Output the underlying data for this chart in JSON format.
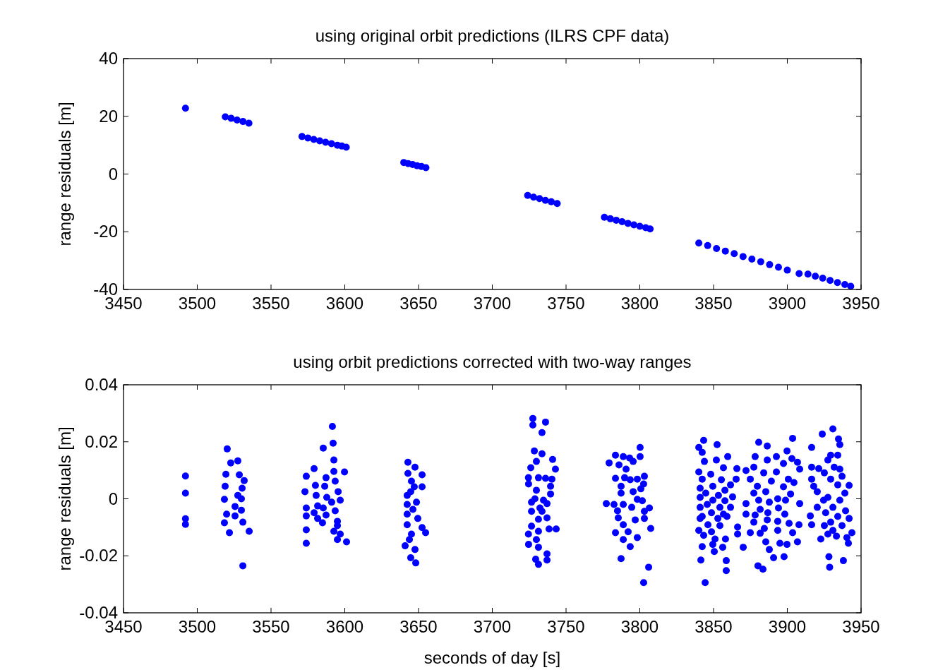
{
  "chart_data": [
    {
      "type": "scatter",
      "title": "using original orbit predictions (ILRS CPF data)",
      "ylabel": "range residuals [m]",
      "marker": "circle",
      "grid": false,
      "xlim": [
        3450,
        3950
      ],
      "xticks": [
        3450,
        3500,
        3550,
        3600,
        3650,
        3700,
        3750,
        3800,
        3850,
        3900,
        3950
      ],
      "ylim": [
        -40,
        40
      ],
      "yticks": [
        -40,
        -20,
        0,
        20,
        40
      ],
      "series": [
        {
          "color": "#0000ff",
          "x": [
            3492,
            3519,
            3523,
            3527,
            3531,
            3535,
            3571,
            3575,
            3579,
            3583,
            3587,
            3591,
            3595,
            3598,
            3601,
            3640,
            3643,
            3646,
            3649,
            3652,
            3655,
            3724,
            3728,
            3732,
            3736,
            3740,
            3744,
            3776,
            3780,
            3784,
            3788,
            3792,
            3796,
            3800,
            3804,
            3807,
            3840,
            3846,
            3852,
            3858,
            3864,
            3870,
            3876,
            3882,
            3888,
            3894,
            3900,
            3908,
            3914,
            3919,
            3924,
            3929,
            3934,
            3939,
            3943
          ],
          "values": [
            22.8,
            19.8,
            19.3,
            18.7,
            18.2,
            17.6,
            13.0,
            12.5,
            12.0,
            11.5,
            11.0,
            10.5,
            10.0,
            9.7,
            9.3,
            4.0,
            3.6,
            3.3,
            2.9,
            2.6,
            2.2,
            -7.4,
            -8.0,
            -8.5,
            -9.1,
            -9.6,
            -10.2,
            -15.0,
            -15.5,
            -16.0,
            -16.5,
            -17.1,
            -17.6,
            -18.1,
            -18.6,
            -19.0,
            -23.9,
            -24.8,
            -25.8,
            -26.7,
            -27.6,
            -28.6,
            -29.5,
            -30.4,
            -31.4,
            -32.3,
            -33.3,
            -34.5,
            -34.7,
            -35.4,
            -36.1,
            -36.9,
            -37.6,
            -38.3,
            -38.9
          ]
        }
      ]
    },
    {
      "type": "scatter",
      "title": "using orbit predictions corrected with two-way ranges",
      "xlabel": "seconds of day [s]",
      "ylabel": "range residuals [m]",
      "marker": "circle",
      "grid": false,
      "xlim": [
        3450,
        3950
      ],
      "xticks": [
        3450,
        3500,
        3550,
        3600,
        3650,
        3700,
        3750,
        3800,
        3850,
        3900,
        3950
      ],
      "ylim": [
        -0.04,
        0.04
      ],
      "yticks": [
        -0.04,
        -0.02,
        0,
        0.02,
        0.04
      ],
      "series": [
        {
          "color": "#0000ff",
          "x": [
            3492,
            3492,
            3492,
            3492,
            3520.3,
            3522.7,
            3527.5,
            3519.4,
            3528.5,
            3531.8,
            3518.9,
            3530.4,
            3518.4,
            3527.5,
            3529.9,
            3525.6,
            3529.9,
            3519.9,
            3525.6,
            3518.4,
            3530.9,
            3521.8,
            3535.2,
            3530.9,
            3591.6,
            3592.1,
            3585.4,
            3592.6,
            3579.2,
            3599.8,
            3592.6,
            3573.9,
            3587.3,
            3580.1,
            3593.5,
            3586.4,
            3573,
            3595.5,
            3580.6,
            3587.8,
            3596.9,
            3591.1,
            3581.6,
            3573.9,
            3585.4,
            3593.5,
            3579.2,
            3573.9,
            3587.3,
            3581.6,
            3584.9,
            3595,
            3595,
            3573.9,
            3592.6,
            3596.9,
            3595,
            3601.2,
            3573.9,
            3642.8,
            3647.6,
            3642.8,
            3652.4,
            3645.2,
            3647.1,
            3652.4,
            3642.3,
            3644.7,
            3648.6,
            3642.3,
            3646.2,
            3642.3,
            3649.5,
            3642.3,
            3652.4,
            3645.2,
            3654.8,
            3643.8,
            3640.9,
            3647.6,
            3644.7,
            3648.1,
            3727.5,
            3736.1,
            3727.5,
            3733.7,
            3728.5,
            3733.7,
            3729.9,
            3740.9,
            3726.1,
            3742.8,
            3724.5,
            3731.3,
            3736.1,
            3740.4,
            3724.6,
            3739.5,
            3729.9,
            3739.5,
            3728.9,
            3726.6,
            3734.7,
            3737.1,
            3732.3,
            3726.6,
            3733.7,
            3737.1,
            3731.3,
            3726.6,
            3738.5,
            3743.3,
            3731.3,
            3724.5,
            3729.9,
            3724.6,
            3731.3,
            3737.1,
            3729.4,
            3737.1,
            3731.3,
            3800.2,
            3783.5,
            3788.8,
            3793.1,
            3800.2,
            3779.2,
            3785.9,
            3795.5,
            3790.7,
            3783.5,
            3789.7,
            3798.3,
            3803.1,
            3793.5,
            3787.3,
            3802.6,
            3800.7,
            3787.3,
            3795.5,
            3777.3,
            3782.5,
            3788.8,
            3798.3,
            3801.7,
            3794.5,
            3806.5,
            3784.9,
            3803.1,
            3785.4,
            3796.9,
            3803.1,
            3788.8,
            3807.4,
            3783.5,
            3792.1,
            3798.3,
            3788.8,
            3793.5,
            3787.3,
            3806,
            3802.6,
            3843.3,
            3840,
            3852.4,
            3842.3,
            3859.6,
            3843.8,
            3851.9,
            3840,
            3856.7,
            3848.1,
            3842.3,
            3855.3,
            3861.5,
            3840.9,
            3849.5,
            3857.7,
            3844.7,
            3853.3,
            3862.9,
            3840.9,
            3849.5,
            3857.7,
            3845.7,
            3854.3,
            3840.9,
            3861.5,
            3848.6,
            3856.7,
            3842.3,
            3852.9,
            3859.1,
            3840.9,
            3846.2,
            3854.3,
            3840,
            3848.6,
            3843.3,
            3851,
            3858.1,
            3842.3,
            3849.5,
            3856.2,
            3850.5,
            3841.4,
            3858.6,
            3858.6,
            3844.3,
            3880.6,
            3886.4,
            3903.6,
            3899.8,
            3878.2,
            3892.6,
            3886.4,
            3903.1,
            3865.8,
            3872,
            3877.3,
            3897.4,
            3906.9,
            3884,
            3892.6,
            3908.4,
            3865.3,
            3874.9,
            3889.2,
            3900.7,
            3904.5,
            3879.7,
            3885.4,
            3897.4,
            3877.3,
            3902.2,
            3880.6,
            3887.8,
            3893.5,
            3898.8,
            3908.4,
            3872,
            3881.6,
            3894,
            3872,
            3878.2,
            3886.8,
            3898.3,
            3877.3,
            3886.4,
            3893.5,
            3901.2,
            3907.9,
            3866.3,
            3884.4,
            3874.9,
            3881.6,
            3893.5,
            3903.6,
            3866.3,
            3885.4,
            3906.9,
            3895,
            3899.8,
            3870.1,
            3887.8,
            3890.7,
            3897.8,
            3880.1,
            3883.5,
            3930.9,
            3923.7,
            3934.7,
            3935.6,
            3916.5,
            3929.4,
            3934.2,
            3927.5,
            3916.5,
            3921.3,
            3931.8,
            3935.6,
            3925.1,
            3937.1,
            3916.5,
            3929.4,
            3941.9,
            3917.9,
            3934.2,
            3920.3,
            3939,
            3927.5,
            3924.6,
            3935.6,
            3920.3,
            3930.9,
            3939.5,
            3926,
            3934.2,
            3915.6,
            3941.9,
            3929.4,
            3916.5,
            3925.1,
            3937.1,
            3930.9,
            3943.8,
            3927.5,
            3933.3,
            3940.4,
            3922.7,
            3941.4,
            3928.2,
            3938,
            3928.7
          ],
          "values": [
            0.008,
            0.002,
            -0.007,
            -0.009,
            0.0175,
            0.0126,
            0.0133,
            0.0086,
            0.0084,
            0.0064,
            0.0044,
            0.0037,
            -0.0002,
            0.0012,
            0,
            -0.0027,
            -0.004,
            -0.0054,
            -0.006,
            -0.0084,
            -0.0082,
            -0.0119,
            -0.0114,
            -0.0235,
            0.0254,
            0.0195,
            0.0178,
            0.0136,
            0.0106,
            0.0094,
            0.0096,
            0.0079,
            0.0074,
            0.0047,
            0.0062,
            0.0044,
            0.0025,
            0.0025,
            0.0012,
            0.0005,
            -0.0005,
            -0.0012,
            -0.0025,
            -0.0032,
            -0.0032,
            -0.0042,
            -0.0049,
            -0.006,
            -0.0057,
            -0.0069,
            -0.0084,
            -0.0079,
            -0.0094,
            -0.0109,
            -0.0114,
            -0.0124,
            -0.0143,
            -0.0151,
            -0.0156,
            0.0128,
            0.0111,
            0.0089,
            0.0084,
            0.0062,
            0.0042,
            0.0042,
            0.0012,
            0.0025,
            -0.0012,
            -0.002,
            -0.0037,
            -0.0054,
            -0.0069,
            -0.0091,
            -0.0101,
            -0.0124,
            -0.0119,
            -0.0143,
            -0.0165,
            -0.0178,
            -0.0207,
            -0.0225,
            0.0282,
            0.0269,
            0.0259,
            0.0232,
            0.0168,
            0.0158,
            0.0131,
            0.0138,
            0.0109,
            0.0104,
            0.0074,
            0.0074,
            0.0072,
            0.0069,
            0.0052,
            0.0044,
            0.003,
            0.0017,
            0,
            -0.0012,
            -0.0005,
            -0.0017,
            -0.0032,
            -0.0044,
            -0.0044,
            -0.0067,
            -0.0072,
            -0.0096,
            -0.0106,
            -0.0106,
            -0.0114,
            -0.0124,
            -0.0143,
            -0.016,
            -0.017,
            -0.0193,
            -0.0212,
            -0.0215,
            -0.023,
            0.018,
            0.0153,
            0.0148,
            0.0143,
            0.0148,
            0.0126,
            0.0119,
            0.0131,
            0.0104,
            0.0072,
            0.0074,
            0.0069,
            0.0079,
            0.0067,
            0.0044,
            0.0052,
            0.0035,
            0.002,
            0.0025,
            -0.0017,
            -0.002,
            -0.002,
            -0.0002,
            -0.0007,
            -0.003,
            -0.0032,
            -0.0042,
            -0.0044,
            -0.0067,
            -0.0074,
            -0.0069,
            -0.0091,
            -0.0104,
            -0.0119,
            -0.0116,
            -0.0136,
            -0.0143,
            -0.0168,
            -0.021,
            -0.024,
            -0.0294,
            0.0205,
            0.018,
            0.019,
            0.0163,
            0.0148,
            0.0131,
            0.0136,
            0.0094,
            0.0109,
            0.0086,
            0.0069,
            0.0067,
            0.0049,
            0.0037,
            0.0044,
            0.003,
            0.002,
            0.0012,
            0.0007,
            0.0005,
            -0.0005,
            -0.0007,
            -0.002,
            -0.003,
            -0.003,
            -0.003,
            -0.0049,
            -0.0054,
            -0.0062,
            -0.0069,
            -0.0062,
            -0.0069,
            -0.0091,
            -0.0094,
            -0.0111,
            -0.0116,
            -0.0128,
            -0.0141,
            -0.0141,
            -0.0168,
            -0.016,
            -0.017,
            -0.0185,
            -0.0215,
            -0.0217,
            -0.0252,
            -0.0294,
            0.0198,
            0.0185,
            0.0212,
            0.0168,
            0.0148,
            0.0148,
            0.0136,
            0.0141,
            0.0106,
            0.0099,
            0.0111,
            0.0124,
            0.0128,
            0.0091,
            0.0094,
            0.0104,
            0.0069,
            0.0069,
            0.0062,
            0.0069,
            0.0057,
            0.0044,
            0.0025,
            0.0042,
            0.002,
            0.0017,
            -0.0005,
            -0.0012,
            0,
            -0.0005,
            -0.0017,
            -0.0017,
            -0.0037,
            -0.0032,
            -0.0054,
            -0.0057,
            -0.0049,
            -0.0054,
            -0.0082,
            -0.0074,
            -0.0079,
            -0.0086,
            -0.0091,
            -0.0099,
            -0.0104,
            -0.0119,
            -0.0121,
            -0.0111,
            -0.0119,
            -0.0124,
            -0.0151,
            -0.0151,
            -0.0156,
            -0.016,
            -0.017,
            -0.0178,
            -0.0207,
            -0.0203,
            -0.0235,
            -0.0247,
            0.0245,
            0.0227,
            0.021,
            0.019,
            0.018,
            0.0153,
            0.0153,
            0.0136,
            0.0111,
            0.0106,
            0.0111,
            0.0104,
            0.0091,
            0.0079,
            0.0069,
            0.0069,
            0.0047,
            0.0044,
            0.0049,
            0.0025,
            0.002,
            0.0005,
            -0.0005,
            -0.0005,
            -0.003,
            -0.003,
            -0.0042,
            -0.0049,
            -0.0062,
            -0.006,
            -0.0069,
            -0.0082,
            -0.0091,
            -0.0094,
            -0.0094,
            -0.0111,
            -0.0119,
            -0.0124,
            -0.0131,
            -0.0136,
            -0.0141,
            -0.0156,
            -0.0203,
            -0.0217,
            -0.024
          ]
        }
      ]
    }
  ]
}
